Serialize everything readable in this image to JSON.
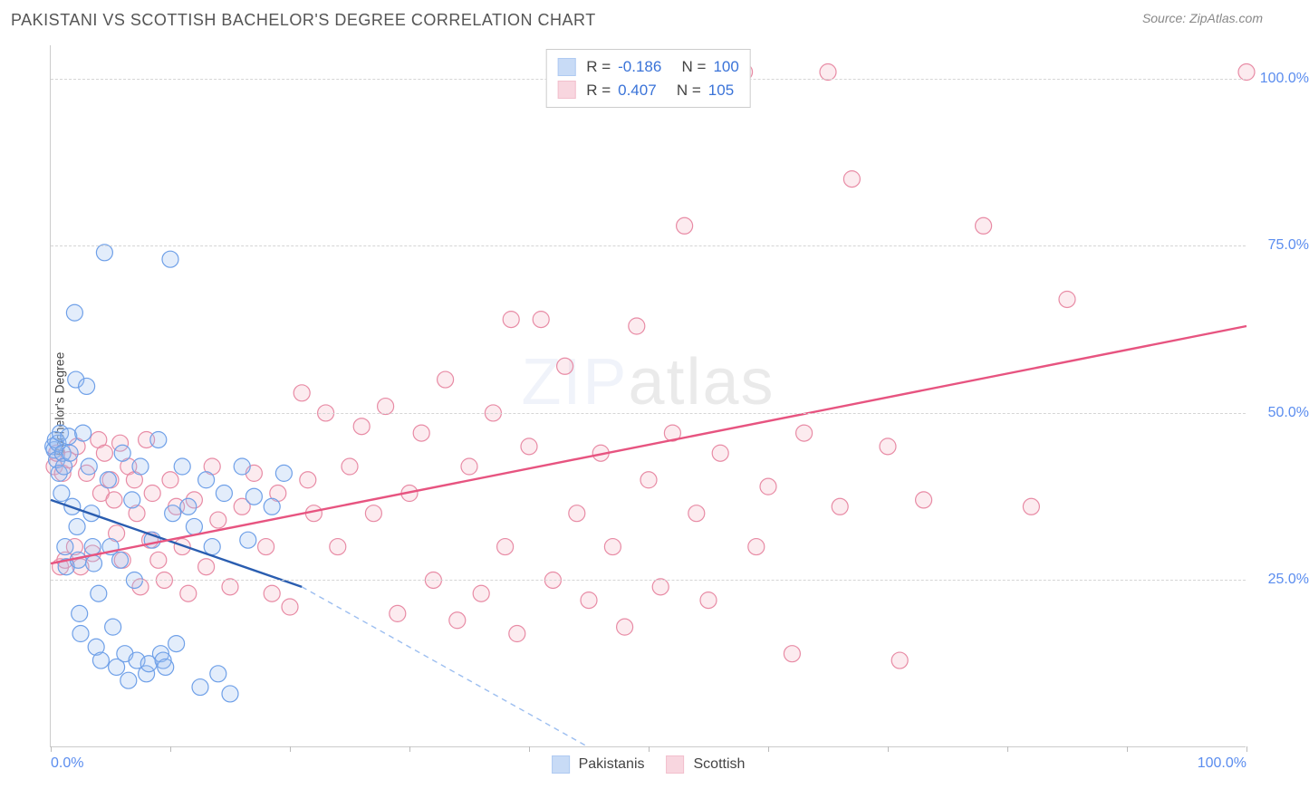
{
  "title": "PAKISTANI VS SCOTTISH BACHELOR'S DEGREE CORRELATION CHART",
  "source_label": "Source: ZipAtlas.com",
  "watermark_primary": "ZIP",
  "watermark_secondary": "atlas",
  "ylabel": "Bachelor's Degree",
  "chart": {
    "type": "scatter",
    "xlim": [
      0,
      100
    ],
    "ylim": [
      0,
      105
    ],
    "x_tick_positions": [
      0,
      10,
      20,
      30,
      40,
      50,
      60,
      70,
      80,
      90,
      100
    ],
    "x_tick_labels_shown": {
      "0": "0.0%",
      "100": "100.0%"
    },
    "y_grid_positions": [
      25,
      50,
      75,
      100
    ],
    "y_tick_labels": {
      "25": "25.0%",
      "50": "50.0%",
      "75": "75.0%",
      "100": "100.0%"
    },
    "background_color": "#ffffff",
    "grid_color": "#d5d5d5",
    "axis_color": "#cccccc",
    "tick_label_color": "#5b8def",
    "marker_radius": 9,
    "marker_stroke_width": 1.2,
    "marker_fill_opacity": 0.28,
    "trend_line_width": 2.4
  },
  "series": [
    {
      "name": "Pakistanis",
      "color_stroke": "#6fa0e8",
      "color_fill": "#9cbef0",
      "trend_color": "#2a5db0",
      "trend_dash_color": "#9cbef0",
      "R": "-0.186",
      "N": "100",
      "trend": {
        "x1": 0,
        "y1": 37,
        "x_solid_end": 21,
        "y_solid_end": 24,
        "x2": 45,
        "y2": 0
      },
      "points": [
        [
          0.2,
          45
        ],
        [
          0.3,
          44.5
        ],
        [
          0.4,
          46
        ],
        [
          0.5,
          43
        ],
        [
          0.6,
          45.5
        ],
        [
          0.7,
          41
        ],
        [
          0.8,
          47
        ],
        [
          0.9,
          38
        ],
        [
          1.0,
          44
        ],
        [
          1.1,
          42
        ],
        [
          1.2,
          30
        ],
        [
          1.3,
          27
        ],
        [
          1.5,
          46.5
        ],
        [
          1.6,
          44
        ],
        [
          1.8,
          36
        ],
        [
          2.0,
          65
        ],
        [
          2.1,
          55
        ],
        [
          2.2,
          33
        ],
        [
          2.3,
          28
        ],
        [
          2.4,
          20
        ],
        [
          2.5,
          17
        ],
        [
          2.7,
          47
        ],
        [
          3.0,
          54
        ],
        [
          3.2,
          42
        ],
        [
          3.4,
          35
        ],
        [
          3.5,
          30
        ],
        [
          3.6,
          27.5
        ],
        [
          3.8,
          15
        ],
        [
          4.0,
          23
        ],
        [
          4.2,
          13
        ],
        [
          4.5,
          74
        ],
        [
          4.8,
          40
        ],
        [
          5.0,
          30
        ],
        [
          5.2,
          18
        ],
        [
          5.5,
          12
        ],
        [
          5.8,
          28
        ],
        [
          6.0,
          44
        ],
        [
          6.2,
          14
        ],
        [
          6.5,
          10
        ],
        [
          6.8,
          37
        ],
        [
          7.0,
          25
        ],
        [
          7.2,
          13
        ],
        [
          7.5,
          42
        ],
        [
          8.0,
          11
        ],
        [
          8.2,
          12.5
        ],
        [
          8.5,
          31
        ],
        [
          9.0,
          46
        ],
        [
          9.2,
          14
        ],
        [
          9.4,
          13
        ],
        [
          9.6,
          12
        ],
        [
          10.0,
          73
        ],
        [
          10.2,
          35
        ],
        [
          10.5,
          15.5
        ],
        [
          11.0,
          42
        ],
        [
          11.5,
          36
        ],
        [
          12.0,
          33
        ],
        [
          12.5,
          9
        ],
        [
          13.0,
          40
        ],
        [
          13.5,
          30
        ],
        [
          14.0,
          11
        ],
        [
          14.5,
          38
        ],
        [
          15.0,
          8
        ],
        [
          16.0,
          42
        ],
        [
          16.5,
          31
        ],
        [
          17.0,
          37.5
        ],
        [
          18.5,
          36
        ],
        [
          19.5,
          41
        ]
      ]
    },
    {
      "name": "Scottish",
      "color_stroke": "#e88ba5",
      "color_fill": "#f4b6c6",
      "trend_color": "#e75480",
      "R": "0.407",
      "N": "105",
      "trend": {
        "x1": 0,
        "y1": 27.5,
        "x2": 100,
        "y2": 63
      },
      "points": [
        [
          0.3,
          42
        ],
        [
          0.5,
          44
        ],
        [
          0.8,
          27
        ],
        [
          1.0,
          41
        ],
        [
          1.2,
          28
        ],
        [
          1.5,
          43
        ],
        [
          2.0,
          30
        ],
        [
          2.2,
          45
        ],
        [
          2.5,
          27
        ],
        [
          3.0,
          41
        ],
        [
          3.5,
          29
        ],
        [
          4.0,
          46
        ],
        [
          4.2,
          38
        ],
        [
          4.5,
          44
        ],
        [
          5.0,
          40
        ],
        [
          5.3,
          37
        ],
        [
          5.5,
          32
        ],
        [
          5.8,
          45.5
        ],
        [
          6.0,
          28
        ],
        [
          6.5,
          42
        ],
        [
          7.0,
          40
        ],
        [
          7.2,
          35
        ],
        [
          7.5,
          24
        ],
        [
          8.0,
          46
        ],
        [
          8.3,
          31
        ],
        [
          8.5,
          38
        ],
        [
          9.0,
          28
        ],
        [
          9.5,
          25
        ],
        [
          10.0,
          40
        ],
        [
          10.5,
          36
        ],
        [
          11.0,
          30
        ],
        [
          11.5,
          23
        ],
        [
          12.0,
          37
        ],
        [
          13.0,
          27
        ],
        [
          13.5,
          42
        ],
        [
          14.0,
          34
        ],
        [
          15.0,
          24
        ],
        [
          16.0,
          36
        ],
        [
          17.0,
          41
        ],
        [
          18.0,
          30
        ],
        [
          18.5,
          23
        ],
        [
          19.0,
          38
        ],
        [
          20.0,
          21
        ],
        [
          21.0,
          53
        ],
        [
          21.5,
          40
        ],
        [
          22.0,
          35
        ],
        [
          23.0,
          50
        ],
        [
          24.0,
          30
        ],
        [
          25.0,
          42
        ],
        [
          26.0,
          48
        ],
        [
          27.0,
          35
        ],
        [
          28.0,
          51
        ],
        [
          29.0,
          20
        ],
        [
          30.0,
          38
        ],
        [
          31.0,
          47
        ],
        [
          32.0,
          25
        ],
        [
          33.0,
          55
        ],
        [
          34.0,
          19
        ],
        [
          35.0,
          42
        ],
        [
          36.0,
          23
        ],
        [
          37.0,
          50
        ],
        [
          38.0,
          30
        ],
        [
          38.5,
          64
        ],
        [
          39.0,
          17
        ],
        [
          40.0,
          45
        ],
        [
          41.0,
          64
        ],
        [
          42.0,
          25
        ],
        [
          43.0,
          57
        ],
        [
          44.0,
          35
        ],
        [
          45.0,
          22
        ],
        [
          46.0,
          44
        ],
        [
          47.0,
          30
        ],
        [
          48.0,
          18
        ],
        [
          49.0,
          63
        ],
        [
          50.0,
          40
        ],
        [
          51.0,
          24
        ],
        [
          52.0,
          47
        ],
        [
          53.0,
          78
        ],
        [
          54.0,
          35
        ],
        [
          55.0,
          22
        ],
        [
          56.0,
          44
        ],
        [
          58.0,
          101
        ],
        [
          59.0,
          30
        ],
        [
          60.0,
          39
        ],
        [
          62.0,
          14
        ],
        [
          63.0,
          47
        ],
        [
          65.0,
          101
        ],
        [
          66.0,
          36
        ],
        [
          67.0,
          85
        ],
        [
          70.0,
          45
        ],
        [
          71.0,
          13
        ],
        [
          73.0,
          37
        ],
        [
          78.0,
          78
        ],
        [
          82.0,
          36
        ],
        [
          85.0,
          67
        ],
        [
          100.0,
          101
        ]
      ]
    }
  ],
  "legend_bottom": [
    "Pakistanis",
    "Scottish"
  ]
}
